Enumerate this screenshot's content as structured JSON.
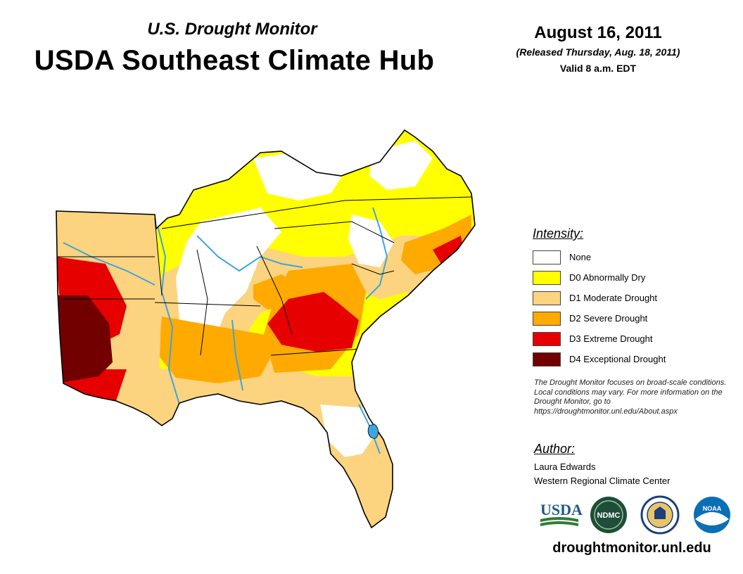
{
  "header": {
    "subtitle": "U.S. Drought Monitor",
    "title": "USDA Southeast Climate Hub",
    "date": "August 16, 2011",
    "released": "(Released Thursday, Aug. 18, 2011)",
    "valid": "Valid 8 a.m. EDT"
  },
  "legend": {
    "heading": "Intensity:",
    "items": [
      {
        "label": "None",
        "color": "#ffffff"
      },
      {
        "label": "D0 Abnormally Dry",
        "color": "#ffff00"
      },
      {
        "label": "D1 Moderate Drought",
        "color": "#fcd37f"
      },
      {
        "label": "D2 Severe Drought",
        "color": "#ffaa00"
      },
      {
        "label": "D3 Extreme Drought",
        "color": "#e60000"
      },
      {
        "label": "D4 Exceptional Drought",
        "color": "#730000"
      }
    ]
  },
  "note": "The Drought Monitor focuses on broad-scale conditions. Local conditions may vary. For more information on the Drought Monitor, go to https://droughtmonitor.unl.edu/About.aspx",
  "author": {
    "heading": "Author:",
    "name": "Laura Edwards",
    "org": "Western Regional Climate Center"
  },
  "logos": [
    {
      "name": "USDA",
      "icon": "usda-logo"
    },
    {
      "name": "NDMC",
      "icon": "ndmc-logo"
    },
    {
      "name": "",
      "icon": "doc-seal-logo"
    },
    {
      "name": "NOAA",
      "icon": "noaa-logo"
    }
  ],
  "website": "droughtmonitor.unl.edu",
  "colors": {
    "none": "#ffffff",
    "d0": "#ffff00",
    "d1": "#fcd37f",
    "d2": "#ffaa00",
    "d3": "#e60000",
    "d4": "#730000",
    "water": "#3da5e0",
    "border": "#000000"
  }
}
